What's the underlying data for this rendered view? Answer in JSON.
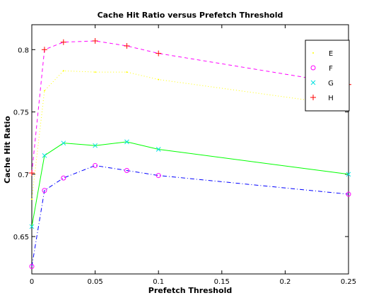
{
  "chart_data": {
    "type": "line",
    "title": "Cache Hit Ratio versus Prefetch Threshold",
    "xlabel": "Prefetch Threshold",
    "ylabel": "Cache Hit Ratio",
    "xlim": [
      0,
      0.25
    ],
    "ylim": [
      0.62,
      0.82
    ],
    "xticks": [
      0,
      0.05,
      0.1,
      0.15,
      0.2,
      0.25
    ],
    "xtick_labels": [
      "0",
      "0.05",
      "0.1",
      "0.15",
      "0.2",
      "0.25"
    ],
    "yticks": [
      0.65,
      0.7,
      0.75,
      0.8
    ],
    "ytick_labels": [
      "0.65",
      "0.7",
      "0.75",
      "0.8"
    ],
    "grid": false,
    "legend_position": "top-right",
    "series": [
      {
        "name": "E",
        "color": "#ffff00",
        "line": "dotted",
        "marker": "point",
        "x": [
          0,
          0.01,
          0.025,
          0.05,
          0.075,
          0.1,
          0.25
        ],
        "y": [
          0.68,
          0.767,
          0.783,
          0.782,
          0.782,
          0.776,
          0.755
        ]
      },
      {
        "name": "F",
        "color": "#ff00ff",
        "line": "dashdot",
        "marker": "circle",
        "x": [
          0,
          0.01,
          0.025,
          0.05,
          0.075,
          0.1,
          0.25
        ],
        "y": [
          0.626,
          0.687,
          0.697,
          0.707,
          0.703,
          0.699,
          0.684
        ]
      },
      {
        "name": "G",
        "color": "#00e0e0",
        "line": "solid",
        "marker": "x",
        "x": [
          0,
          0.01,
          0.025,
          0.05,
          0.075,
          0.1,
          0.25
        ],
        "y": [
          0.658,
          0.715,
          0.725,
          0.723,
          0.726,
          0.72,
          0.7
        ]
      },
      {
        "name": "H",
        "color": "#ff0000",
        "line": "dashed",
        "marker": "plus",
        "x": [
          0,
          0.01,
          0.025,
          0.05,
          0.075,
          0.1,
          0.25
        ],
        "y": [
          0.701,
          0.8,
          0.806,
          0.807,
          0.803,
          0.797,
          0.772
        ]
      }
    ]
  },
  "colors": {
    "line_e": "#ffff00",
    "line_f": "#0000ff",
    "marker_f": "#ff00ff",
    "line_g": "#00ff00",
    "marker_g": "#00e0e0",
    "line_h": "#ff00ff",
    "marker_h": "#ff0000"
  }
}
